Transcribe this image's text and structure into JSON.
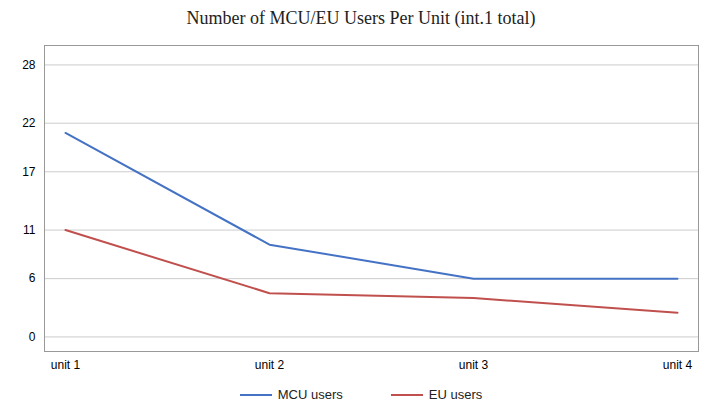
{
  "chart_data": {
    "type": "line",
    "title": "Number of MCU/EU Users Per Unit (int.1 total)",
    "categories": [
      "unit 1",
      "unit 2",
      "unit 3",
      "unit 4"
    ],
    "series": [
      {
        "name": "MCU users",
        "color": "#4472C4",
        "values": [
          21,
          9.5,
          6,
          6
        ]
      },
      {
        "name": "EU users",
        "color": "#C0504D",
        "values": [
          11,
          4.5,
          4,
          2.5
        ]
      }
    ],
    "ylim": [
      -1.5,
      30
    ],
    "yticks": [
      0,
      6,
      11,
      17,
      22,
      28
    ],
    "grid": true,
    "legend": "bottom"
  }
}
